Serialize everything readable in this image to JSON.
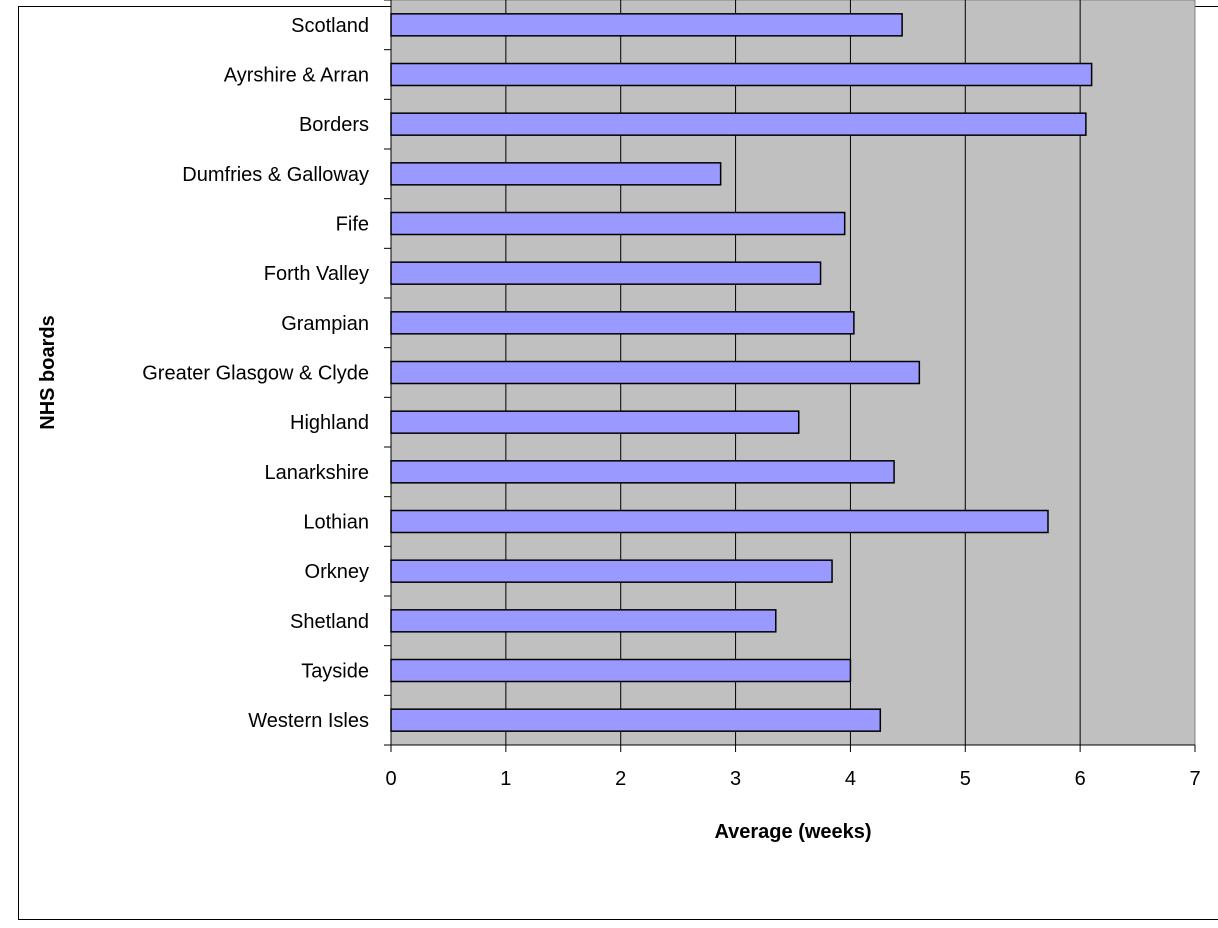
{
  "chart_data": {
    "type": "bar",
    "orientation": "horizontal",
    "categories": [
      "Scotland",
      "Ayrshire & Arran",
      "Borders",
      "Dumfries & Galloway",
      "Fife",
      "Forth Valley",
      "Grampian",
      "Greater Glasgow & Clyde",
      "Highland",
      "Lanarkshire",
      "Lothian",
      "Orkney",
      "Shetland",
      "Tayside",
      "Western Isles"
    ],
    "values": [
      4.45,
      6.1,
      6.05,
      2.87,
      3.95,
      3.74,
      4.03,
      4.6,
      3.55,
      4.38,
      5.72,
      3.84,
      3.35,
      4.0,
      4.26
    ],
    "title": "",
    "xlabel": "Average (weeks)",
    "ylabel": "NHS boards",
    "xlim": [
      0,
      7
    ],
    "xticks": [
      "0",
      "1",
      "2",
      "3",
      "4",
      "5",
      "6",
      "7"
    ],
    "grid": "vertical major gridlines",
    "legend": "none",
    "colors": {
      "bar_fill": "#9999ff",
      "bar_stroke": "#000000",
      "plot_bg": "#c0c0c0",
      "gridline": "#000000"
    }
  }
}
